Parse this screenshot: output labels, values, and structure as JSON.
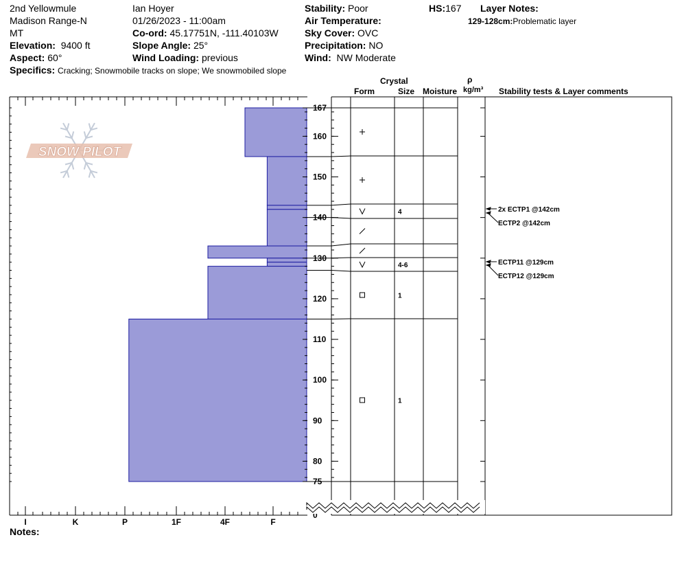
{
  "header": {
    "location": "2nd Yellowmule",
    "range": "Madison Range-N",
    "state": "MT",
    "elevation_label": "Elevation:",
    "elevation_value": "9400 ft",
    "aspect_label": "Aspect:",
    "aspect_value": "60°",
    "specifics_label": "Specifics:",
    "specifics_value": "Cracking;  Snowmobile tracks on slope;  We snowmobiled slope",
    "observer": "Ian Hoyer",
    "datetime": "01/26/2023 - 11:00am",
    "coord_label": "Co-ord:",
    "coord_value": "45.17751N, -111.40103W",
    "slope_label": "Slope Angle:",
    "slope_value": "25°",
    "wind_loading_label": "Wind Loading:",
    "wind_loading_value": "previous",
    "stability_label": "Stability:",
    "stability_value": "Poor",
    "air_temp_label": "Air Temperature:",
    "sky_label": "Sky Cover:",
    "sky_value": "OVC",
    "precip_label": "Precipitation:",
    "precip_value": "NO",
    "wind_label": "Wind:",
    "wind_value": "NW Moderate",
    "hs_label": "HS:",
    "hs_value": "167",
    "layer_notes_label": "Layer Notes:",
    "layer_note_depth": "129-128cm:",
    "layer_note_text": "Problematic layer"
  },
  "columns": {
    "crystal": "Crystal",
    "form": "Form",
    "size": "Size",
    "moisture": "Moisture",
    "rho": "ρ",
    "density_unit": "kg/m³",
    "stability": "Stability tests & Layer comments"
  },
  "logo": {
    "text": "SNOW PILOT"
  },
  "notes_label": "Notes:",
  "chart_data": {
    "type": "snow-profile",
    "y_unit": "cm",
    "hs": 167,
    "y_ticks": [
      167,
      160,
      150,
      140,
      130,
      120,
      110,
      100,
      90,
      80,
      75,
      0
    ],
    "hardness_scale": [
      "I",
      "K",
      "P",
      "1F",
      "4F",
      "F"
    ],
    "hardness_layers": [
      {
        "top": 167,
        "bottom": 155,
        "hardness": 1.25
      },
      {
        "top": 155,
        "bottom": 143,
        "hardness": 0.8
      },
      {
        "top": 143,
        "bottom": 142,
        "hardness": 0.8
      },
      {
        "top": 142,
        "bottom": 133,
        "hardness": 0.8
      },
      {
        "top": 133,
        "bottom": 130,
        "hardness": 2.0
      },
      {
        "top": 130,
        "bottom": 129,
        "hardness": 0.8
      },
      {
        "top": 129,
        "bottom": 128,
        "hardness": 0.8
      },
      {
        "top": 128,
        "bottom": 115,
        "hardness": 2.0
      },
      {
        "top": 115,
        "bottom": 75,
        "hardness": 3.6
      }
    ],
    "crystal_layers": [
      {
        "top": 167,
        "bottom": 155,
        "form": "+",
        "size": ""
      },
      {
        "top": 155,
        "bottom": 143,
        "form": "+",
        "size": ""
      },
      {
        "top": 143,
        "bottom": 140,
        "form": "v",
        "size": "4"
      },
      {
        "top": 140,
        "bottom": 133,
        "form": "/",
        "size": ""
      },
      {
        "top": 133,
        "bottom": 130,
        "form": "/",
        "size": ""
      },
      {
        "top": 130,
        "bottom": 127,
        "form": "v",
        "size": "4-6"
      },
      {
        "top": 127,
        "bottom": 115,
        "form": "sq",
        "size": "1"
      },
      {
        "top": 115,
        "bottom": 75,
        "form": "sq",
        "size": "1"
      }
    ],
    "stability_tests": [
      {
        "label": "2x ECTP1 @142cm"
      },
      {
        "label": "ECTP2 @142cm"
      },
      {
        "label": "ECTP11 @129cm"
      },
      {
        "label": "ECTP12 @129cm"
      }
    ]
  }
}
